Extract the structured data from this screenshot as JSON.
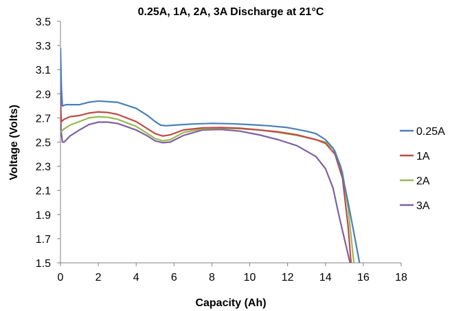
{
  "chart_data": {
    "type": "line",
    "title": "0.25A, 1A, 2A, 3A Discharge at 21°C",
    "xlabel": "Capacity (Ah)",
    "ylabel": "Voltage (Volts)",
    "xlim": [
      0,
      18
    ],
    "ylim": [
      1.5,
      3.5
    ],
    "xticks": [
      0,
      2,
      4,
      6,
      8,
      10,
      12,
      14,
      16,
      18
    ],
    "yticks": [
      1.5,
      1.7,
      1.9,
      2.1,
      2.3,
      2.5,
      2.7,
      2.9,
      3.1,
      3.3,
      3.5
    ],
    "xtick_labels": [
      "0",
      "2",
      "4",
      "6",
      "8",
      "10",
      "12",
      "14",
      "16",
      "18"
    ],
    "ytick_labels": [
      "1.5",
      "1.7",
      "1.9",
      "2.1",
      "2.3",
      "2.5",
      "2.7",
      "2.9",
      "3.1",
      "3.3",
      "3.5"
    ],
    "grid": false,
    "legend_position": "right",
    "series": [
      {
        "name": "0.25A",
        "color": "#4a7ebb",
        "points": [
          [
            0,
            3.28
          ],
          [
            0.05,
            2.95
          ],
          [
            0.1,
            2.8
          ],
          [
            0.3,
            2.81
          ],
          [
            1,
            2.81
          ],
          [
            1.5,
            2.83
          ],
          [
            2,
            2.84
          ],
          [
            3,
            2.83
          ],
          [
            4,
            2.78
          ],
          [
            4.6,
            2.72
          ],
          [
            5,
            2.67
          ],
          [
            5.3,
            2.64
          ],
          [
            5.6,
            2.635
          ],
          [
            6,
            2.64
          ],
          [
            7,
            2.65
          ],
          [
            8,
            2.655
          ],
          [
            9,
            2.652
          ],
          [
            10,
            2.645
          ],
          [
            11,
            2.635
          ],
          [
            12,
            2.62
          ],
          [
            13,
            2.59
          ],
          [
            13.5,
            2.57
          ],
          [
            14,
            2.52
          ],
          [
            14.4,
            2.45
          ],
          [
            14.8,
            2.3
          ],
          [
            15.2,
            2.0
          ],
          [
            15.5,
            1.75
          ],
          [
            15.8,
            1.5
          ]
        ]
      },
      {
        "name": "1A",
        "color": "#be4b48",
        "points": [
          [
            0,
            2.8
          ],
          [
            0.05,
            2.67
          ],
          [
            0.2,
            2.69
          ],
          [
            0.5,
            2.71
          ],
          [
            1,
            2.72
          ],
          [
            1.5,
            2.74
          ],
          [
            2,
            2.75
          ],
          [
            2.5,
            2.745
          ],
          [
            3,
            2.73
          ],
          [
            4,
            2.67
          ],
          [
            4.6,
            2.61
          ],
          [
            5,
            2.57
          ],
          [
            5.4,
            2.55
          ],
          [
            5.8,
            2.56
          ],
          [
            6.5,
            2.6
          ],
          [
            7.5,
            2.618
          ],
          [
            8.5,
            2.62
          ],
          [
            9.5,
            2.615
          ],
          [
            10.5,
            2.6
          ],
          [
            11.5,
            2.585
          ],
          [
            12.5,
            2.56
          ],
          [
            13.5,
            2.52
          ],
          [
            14,
            2.49
          ],
          [
            14.5,
            2.4
          ],
          [
            14.9,
            2.2
          ],
          [
            15.2,
            1.8
          ],
          [
            15.35,
            1.5
          ]
        ]
      },
      {
        "name": "2A",
        "color": "#98b954",
        "points": [
          [
            0,
            2.58
          ],
          [
            0.2,
            2.61
          ],
          [
            0.5,
            2.64
          ],
          [
            1,
            2.67
          ],
          [
            1.5,
            2.7
          ],
          [
            2,
            2.71
          ],
          [
            2.5,
            2.705
          ],
          [
            3,
            2.69
          ],
          [
            4,
            2.63
          ],
          [
            4.6,
            2.57
          ],
          [
            5,
            2.53
          ],
          [
            5.4,
            2.51
          ],
          [
            5.8,
            2.52
          ],
          [
            6.5,
            2.58
          ],
          [
            7.5,
            2.61
          ],
          [
            8.5,
            2.615
          ],
          [
            9.5,
            2.61
          ],
          [
            10.5,
            2.6
          ],
          [
            11.5,
            2.58
          ],
          [
            12.5,
            2.555
          ],
          [
            13.5,
            2.52
          ],
          [
            14,
            2.5
          ],
          [
            14.5,
            2.43
          ],
          [
            14.9,
            2.25
          ],
          [
            15.2,
            1.95
          ],
          [
            15.5,
            1.5
          ]
        ]
      },
      {
        "name": "3A",
        "color": "#7d60a0",
        "points": [
          [
            0,
            3.27
          ],
          [
            0.03,
            2.6
          ],
          [
            0.1,
            2.5
          ],
          [
            0.2,
            2.5
          ],
          [
            0.5,
            2.55
          ],
          [
            1,
            2.6
          ],
          [
            1.5,
            2.645
          ],
          [
            2,
            2.665
          ],
          [
            2.5,
            2.665
          ],
          [
            3,
            2.655
          ],
          [
            4,
            2.6
          ],
          [
            4.6,
            2.55
          ],
          [
            5,
            2.51
          ],
          [
            5.4,
            2.495
          ],
          [
            5.8,
            2.5
          ],
          [
            6.5,
            2.555
          ],
          [
            7.5,
            2.6
          ],
          [
            8.5,
            2.605
          ],
          [
            9.5,
            2.59
          ],
          [
            10.5,
            2.56
          ],
          [
            11.5,
            2.52
          ],
          [
            12.5,
            2.47
          ],
          [
            13.5,
            2.38
          ],
          [
            14,
            2.28
          ],
          [
            14.4,
            2.12
          ],
          [
            14.7,
            1.9
          ],
          [
            15,
            1.7
          ],
          [
            15.3,
            1.5
          ]
        ]
      }
    ]
  }
}
